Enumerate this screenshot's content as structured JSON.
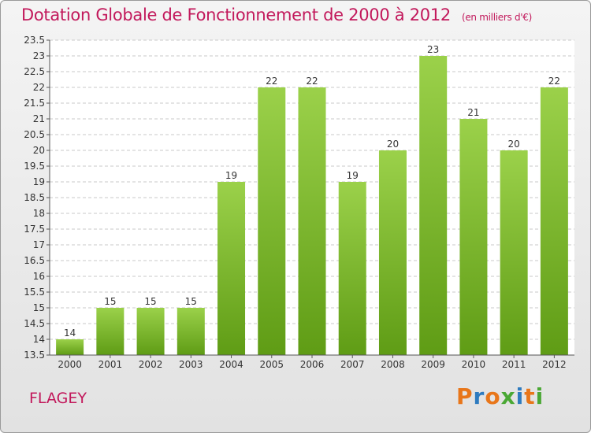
{
  "header": {
    "title": "Dotation Globale de Fonctionnement de 2000 à 2012",
    "subtitle": "(en milliers d'€)"
  },
  "commune": "FLAGEY",
  "logo": {
    "text": "Proxiti",
    "colors": [
      "#e8761a",
      "#2e7bbf",
      "#e8761a",
      "#4aa834",
      "#2e7bbf",
      "#e8761a",
      "#4aa834"
    ]
  },
  "chart_data": {
    "type": "bar",
    "title": "Dotation Globale de Fonctionnement de 2000 à 2012",
    "subtitle": "(en milliers d'€)",
    "categories": [
      "2000",
      "2001",
      "2002",
      "2003",
      "2004",
      "2005",
      "2006",
      "2007",
      "2008",
      "2009",
      "2010",
      "2011",
      "2012"
    ],
    "values": [
      14,
      15,
      15,
      15,
      19,
      22,
      22,
      19,
      20,
      23,
      21,
      20,
      22
    ],
    "ylim": [
      13.5,
      23.5
    ],
    "yticks": [
      13.5,
      14,
      14.5,
      15,
      15.5,
      16,
      16.5,
      17,
      17.5,
      18,
      18.5,
      19,
      19.5,
      20,
      20.5,
      21,
      21.5,
      22,
      22.5,
      23,
      23.5
    ],
    "grid": true,
    "bar_color_top": "#9bd14a",
    "bar_color_bottom": "#5f9c15"
  }
}
